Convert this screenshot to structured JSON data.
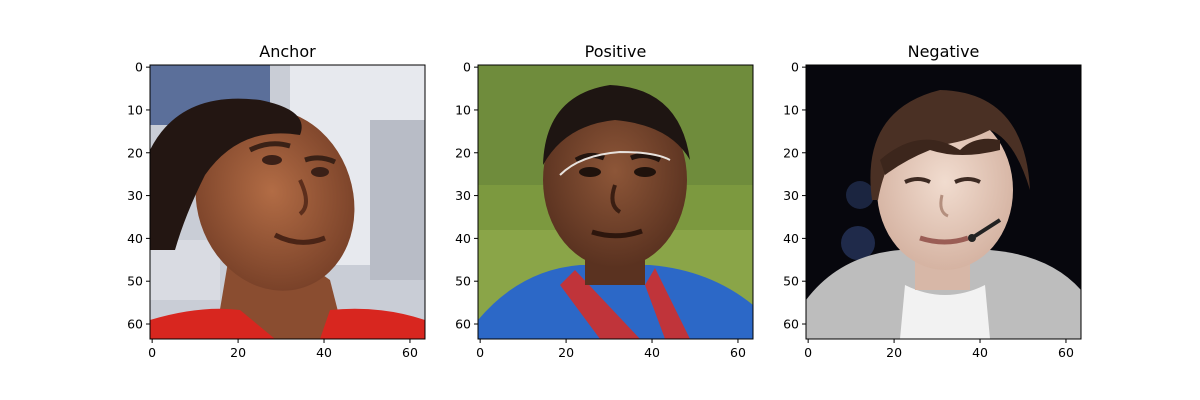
{
  "figure": {
    "panels": [
      {
        "id": "anchor",
        "title": "Anchor",
        "image_desc": "face-photo",
        "colors": {
          "bg1": "#5b6f9a",
          "bg2": "#e7e9ee",
          "bg3": "#c9cdd6",
          "skin": "#9a5a3a",
          "skin_dark": "#6d3c26",
          "hair": "#231612",
          "shirt": "#d8261f"
        }
      },
      {
        "id": "positive",
        "title": "Positive",
        "image_desc": "face-photo",
        "colors": {
          "bg1": "#6f8c3c",
          "bg2": "#8aa548",
          "skin": "#7a4a30",
          "skin_dark": "#4c2a1c",
          "hair": "#1e1512",
          "shirt": "#2c68c7",
          "accent": "#c0343a"
        }
      },
      {
        "id": "negative",
        "title": "Negative",
        "image_desc": "face-photo",
        "colors": {
          "bg1": "#07070d",
          "bg2": "#1b2540",
          "skin": "#e9d2c4",
          "skin_dark": "#c9a796",
          "hair": "#4a3024",
          "shirt": "#bdbdbd",
          "shirt2": "#f2f2f2"
        }
      }
    ],
    "x_ticks": [
      "0",
      "20",
      "40",
      "60"
    ],
    "y_ticks": [
      "0",
      "10",
      "20",
      "30",
      "40",
      "50",
      "60"
    ],
    "axis_range": {
      "x": [
        -0.5,
        63.5
      ],
      "y": [
        63.5,
        -0.5
      ]
    },
    "x_tick_values": [
      0,
      20,
      40,
      60
    ],
    "y_tick_values": [
      0,
      10,
      20,
      30,
      40,
      50,
      60
    ]
  }
}
